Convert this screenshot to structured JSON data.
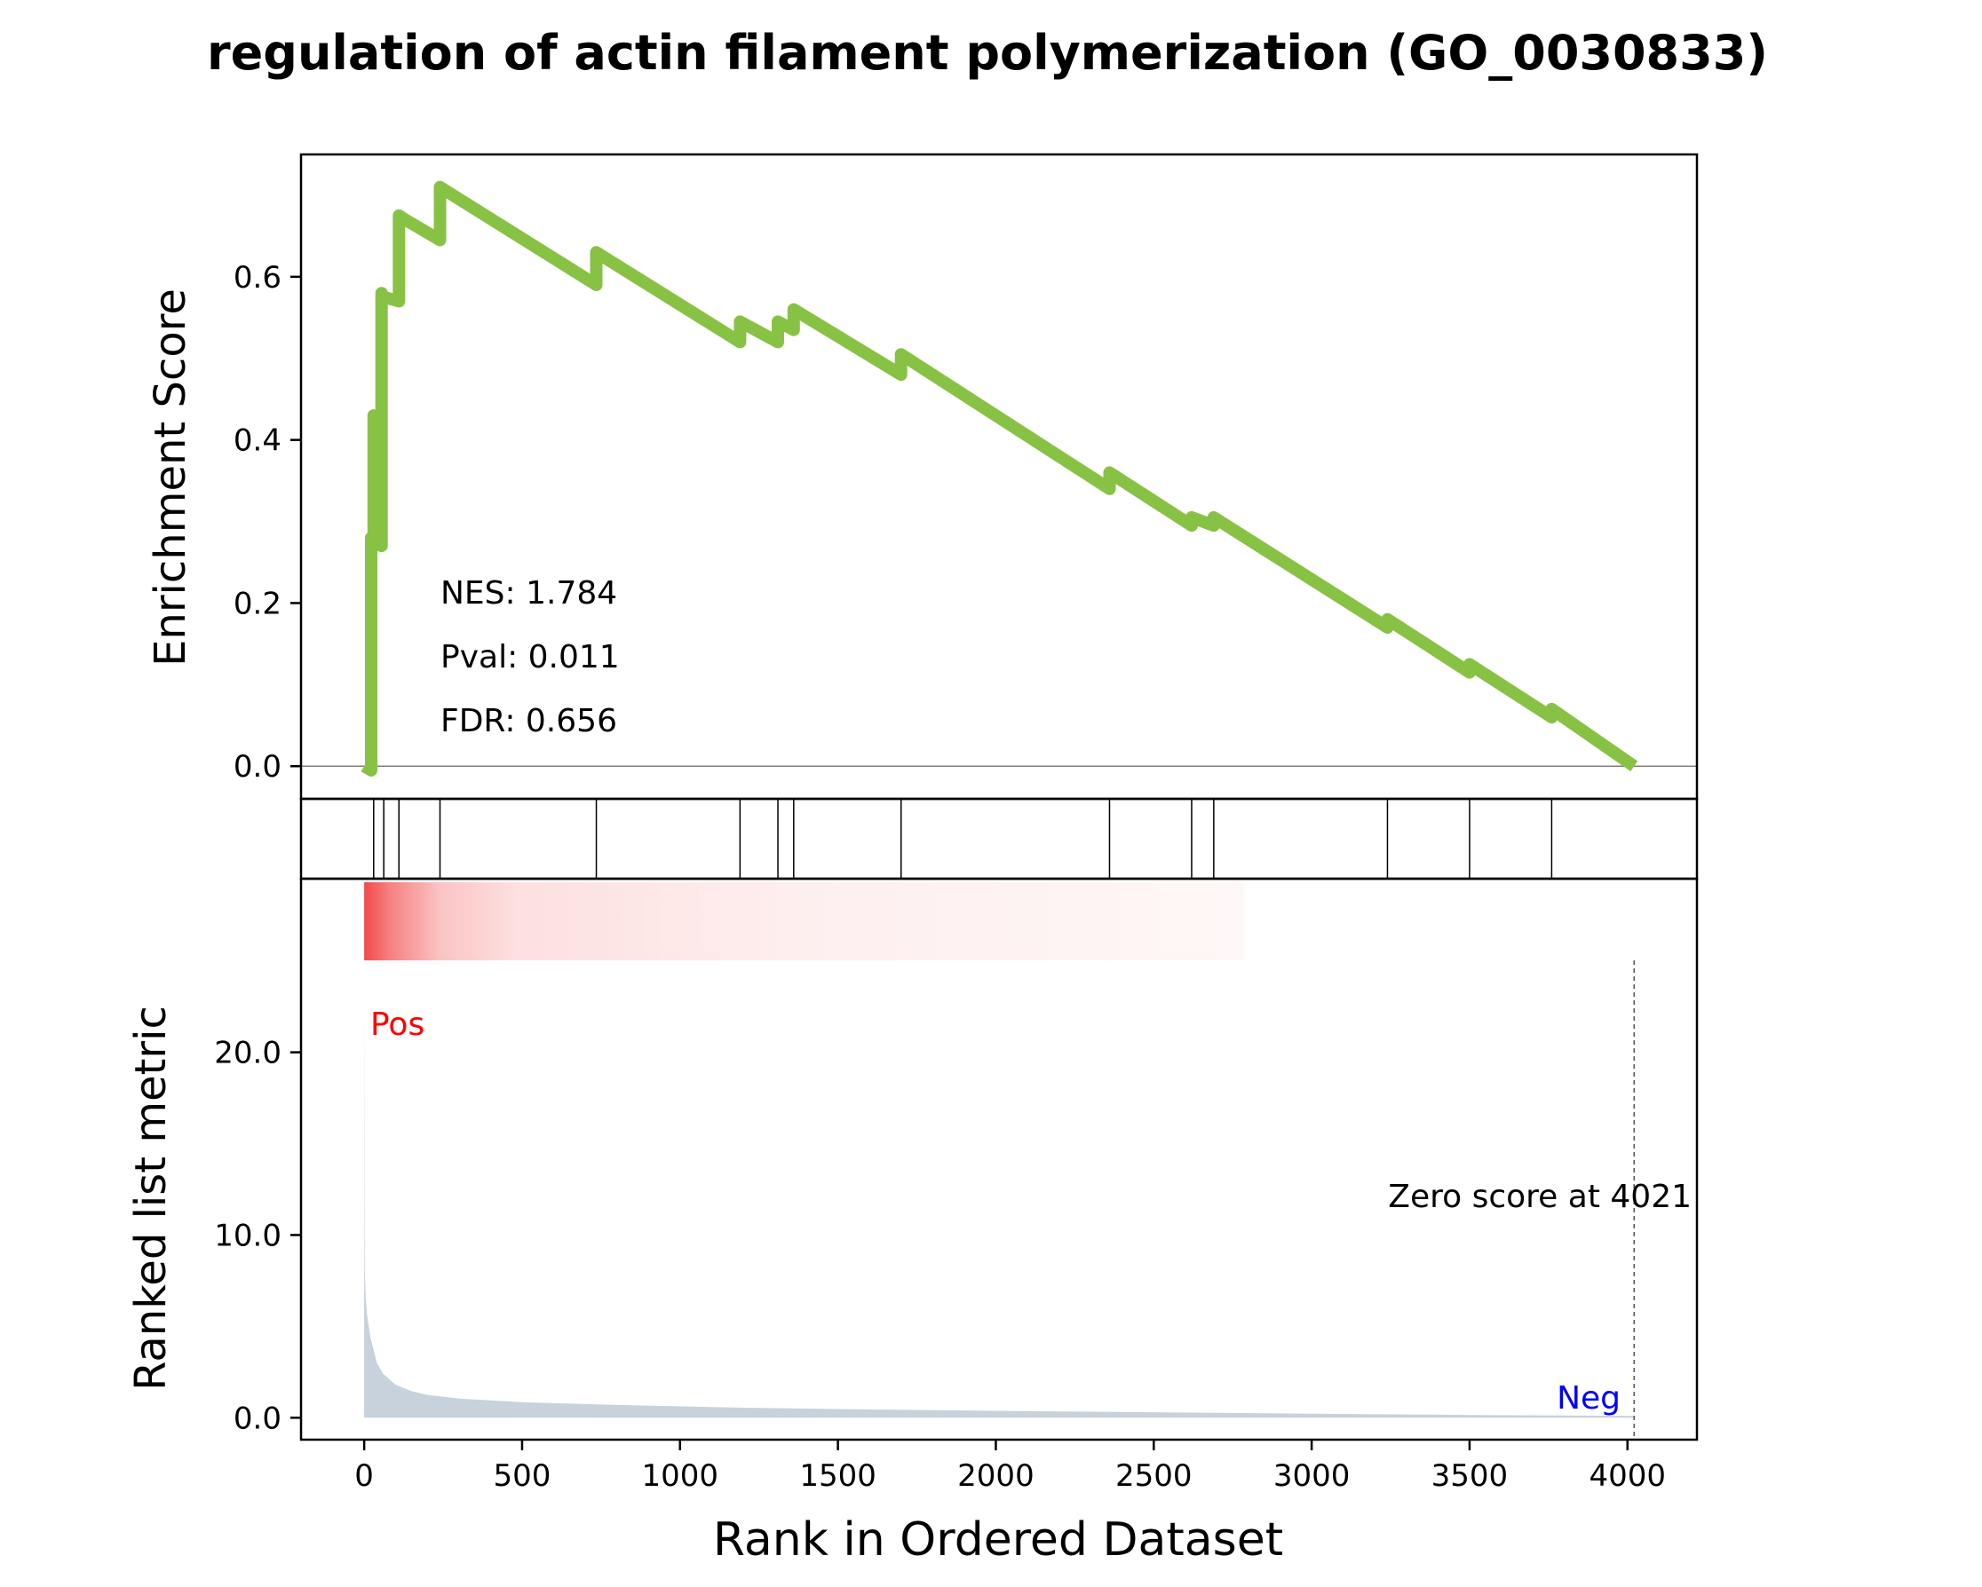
{
  "chart_data": {
    "type": "line",
    "title": "regulation of actin filament polymerization (GO_0030833)",
    "colors": {
      "es_line": "#88c244",
      "metric_fill": "#c8d2dc",
      "pos_label": "#ff0000",
      "neg_label": "#0000ff",
      "heat_high": "#f04a4a",
      "zero_line": "#808080"
    },
    "es_panel": {
      "ylabel": "Enrichment Score",
      "ylim": [
        -0.04,
        0.75
      ],
      "yticks": [
        0.0,
        0.2,
        0.4,
        0.6
      ],
      "ytick_labels": [
        "0.0",
        "0.2",
        "0.4",
        "0.6"
      ],
      "stats": [
        "NES: 1.784",
        "Pval: 0.011",
        "FDR: 0.656"
      ],
      "x": [
        0,
        22,
        22,
        30,
        30,
        55,
        55,
        62,
        62,
        110,
        110,
        130,
        130,
        240,
        240,
        735,
        735,
        1190,
        1190,
        1310,
        1310,
        1360,
        1360,
        1700,
        1700,
        2360,
        2360,
        2620,
        2620,
        2690,
        2690,
        3240,
        3240,
        3500,
        3500,
        3760,
        3760,
        4021
      ],
      "y": [
        0.0,
        -0.005,
        0.28,
        0.275,
        0.43,
        0.27,
        0.58,
        0.575,
        0.575,
        0.57,
        0.675,
        0.67,
        0.67,
        0.645,
        0.71,
        0.59,
        0.63,
        0.52,
        0.545,
        0.52,
        0.545,
        0.535,
        0.56,
        0.48,
        0.505,
        0.34,
        0.36,
        0.295,
        0.305,
        0.295,
        0.305,
        0.17,
        0.18,
        0.115,
        0.125,
        0.06,
        0.07,
        0.0
      ]
    },
    "hits": [
      30,
      62,
      110,
      240,
      735,
      1190,
      1310,
      1360,
      1700,
      2360,
      2620,
      2690,
      3240,
      3500,
      3760
    ],
    "metric_panel": {
      "ylabel": "Ranked list metric",
      "xlabel": "Rank in Ordered Dataset",
      "xlim": [
        -200,
        4220
      ],
      "xticks": [
        0,
        500,
        1000,
        1500,
        2000,
        2500,
        3000,
        3500,
        4000
      ],
      "xtick_labels": [
        "0",
        "500",
        "1000",
        "1500",
        "2000",
        "2500",
        "3000",
        "3500",
        "4000"
      ],
      "ylim": [
        -1.2,
        29.5
      ],
      "yticks": [
        0.0,
        10.0,
        20.0
      ],
      "ytick_labels": [
        "0.0",
        "10.0",
        "20.0"
      ],
      "curve_x": [
        0,
        1,
        2,
        5,
        10,
        20,
        40,
        60,
        100,
        150,
        200,
        300,
        500,
        800,
        1200,
        1600,
        2000,
        2500,
        3000,
        3500,
        4021
      ],
      "curve_y": [
        24.0,
        12.0,
        8.0,
        6.5,
        5.5,
        4.4,
        3.0,
        2.4,
        1.8,
        1.45,
        1.25,
        1.05,
        0.85,
        0.7,
        0.55,
        0.45,
        0.38,
        0.3,
        0.22,
        0.15,
        0.1
      ],
      "pos_label": "Pos",
      "neg_label": "Neg",
      "zero_score_label": "Zero score at 4021",
      "zero_score_rank": 4021
    }
  }
}
